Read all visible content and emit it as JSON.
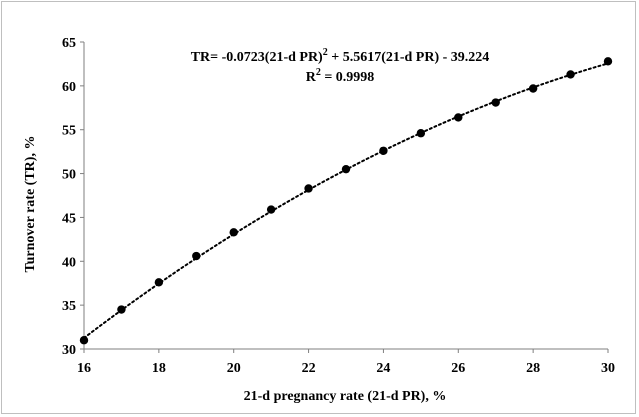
{
  "chart_data": {
    "type": "scatter",
    "xlabel": "21-d pregnancy rate (21-d PR), %",
    "ylabel": "Turnover rate (TR), %",
    "xlim": [
      16,
      30
    ],
    "ylim": [
      30,
      65
    ],
    "x_ticks": [
      "16",
      "18",
      "20",
      "22",
      "24",
      "26",
      "28",
      "30"
    ],
    "y_ticks": [
      "30",
      "35",
      "40",
      "45",
      "50",
      "55",
      "60",
      "65"
    ],
    "x_tick_values": [
      16,
      18,
      20,
      22,
      24,
      26,
      28,
      30
    ],
    "y_tick_values": [
      30,
      35,
      40,
      45,
      50,
      55,
      60,
      65
    ],
    "series": [
      {
        "name": "Turnover rate",
        "x": [
          16,
          17,
          18,
          19,
          20,
          21,
          22,
          23,
          24,
          25,
          26,
          27,
          28,
          29,
          30
        ],
        "y": [
          31.0,
          34.5,
          37.6,
          40.6,
          43.3,
          45.9,
          48.3,
          50.5,
          52.6,
          54.6,
          56.4,
          58.1,
          59.7,
          61.3,
          62.8
        ]
      }
    ],
    "trendline": {
      "type": "polynomial",
      "a": -0.0723,
      "b": 5.5617,
      "c": -39.224,
      "style": "dotted"
    },
    "annotation": {
      "equation_prefix": "TR= -0.0723(21-d PR)",
      "equation_sup": "2",
      "equation_suffix": " + 5.5617(21-d PR) - 39.224",
      "r2_prefix": "R",
      "r2_sup": "2",
      "r2_suffix": " = 0.9998"
    }
  }
}
